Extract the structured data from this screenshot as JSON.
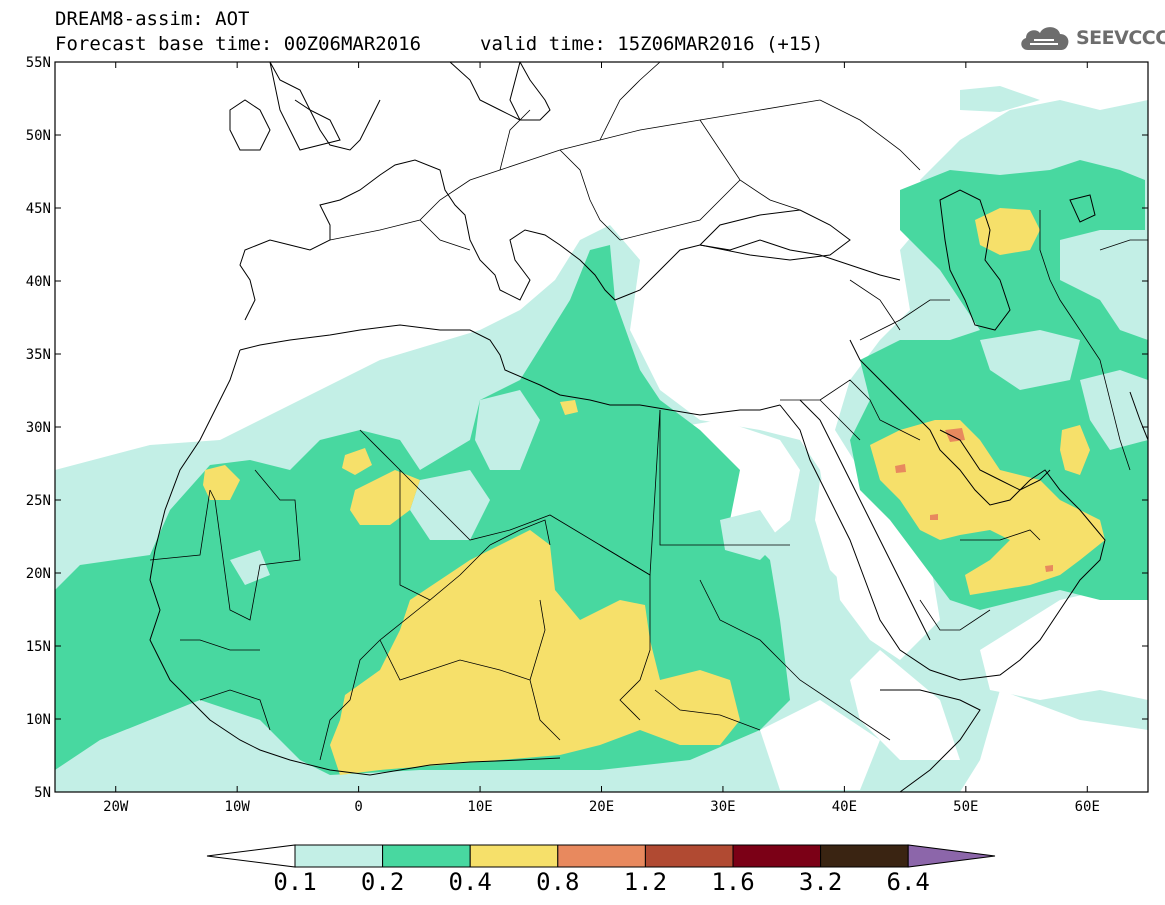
{
  "header": {
    "title": "DREAM8-assim: AOT",
    "base_time": "Forecast base time: 00Z06MAR2016",
    "valid_time": "valid time: 15Z06MAR2016 (+15)",
    "logo": "SEEVCCC",
    "logo_icon": "cloud-icon"
  },
  "map": {
    "lat_range": [
      5,
      55
    ],
    "lon_range": [
      -25,
      65
    ],
    "lat_ticks": [
      "55N",
      "50N",
      "45N",
      "40N",
      "35N",
      "30N",
      "25N",
      "20N",
      "15N",
      "10N",
      "5N"
    ],
    "lon_ticks": [
      "20W",
      "10W",
      "0",
      "10E",
      "20E",
      "30E",
      "40E",
      "50E",
      "60E"
    ]
  },
  "colorbar": {
    "levels": [
      "0.1",
      "0.2",
      "0.4",
      "0.8",
      "1.2",
      "1.6",
      "3.2",
      "6.4"
    ],
    "colors": [
      "#ffffff",
      "#c3efe6",
      "#48d8a0",
      "#f6e06a",
      "#e8895e",
      "#b14a32",
      "#7b0016",
      "#3a2412",
      "#8c66aa"
    ]
  }
}
